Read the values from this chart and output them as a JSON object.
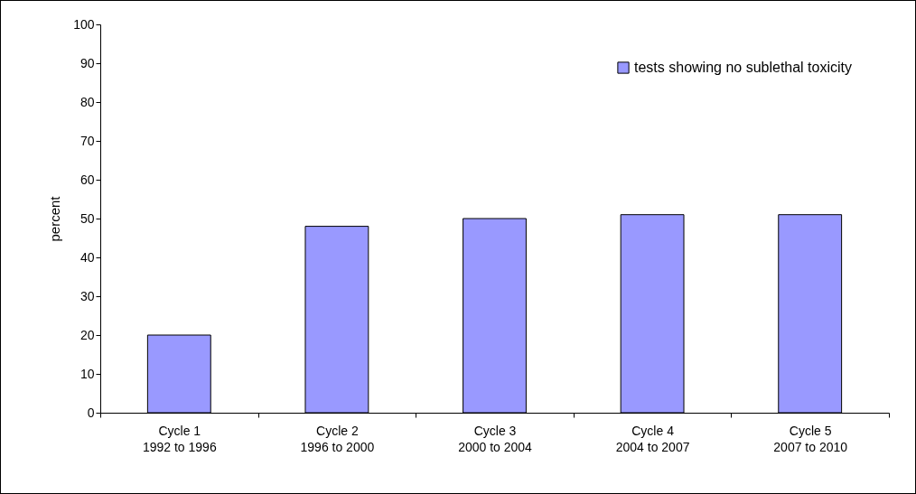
{
  "chart_data": {
    "type": "bar",
    "ylabel": "percent",
    "categories": [
      "Cycle 1\n1992 to 1996",
      "Cycle 2\n1996 to 2000",
      "Cycle 3\n2000 to 2004",
      "Cycle 4\n2004 to 2007",
      "Cycle 5\n2007 to 2010"
    ],
    "series": [
      {
        "name": "tests showing no sublethal toxicity",
        "color": "#9999ff",
        "values": [
          20,
          48,
          50,
          51,
          51
        ]
      }
    ],
    "ylim": [
      0,
      100
    ],
    "yticks": [
      0,
      10,
      20,
      30,
      40,
      50,
      60,
      70,
      80,
      90,
      100
    ],
    "grid": false,
    "legend": "top right"
  }
}
